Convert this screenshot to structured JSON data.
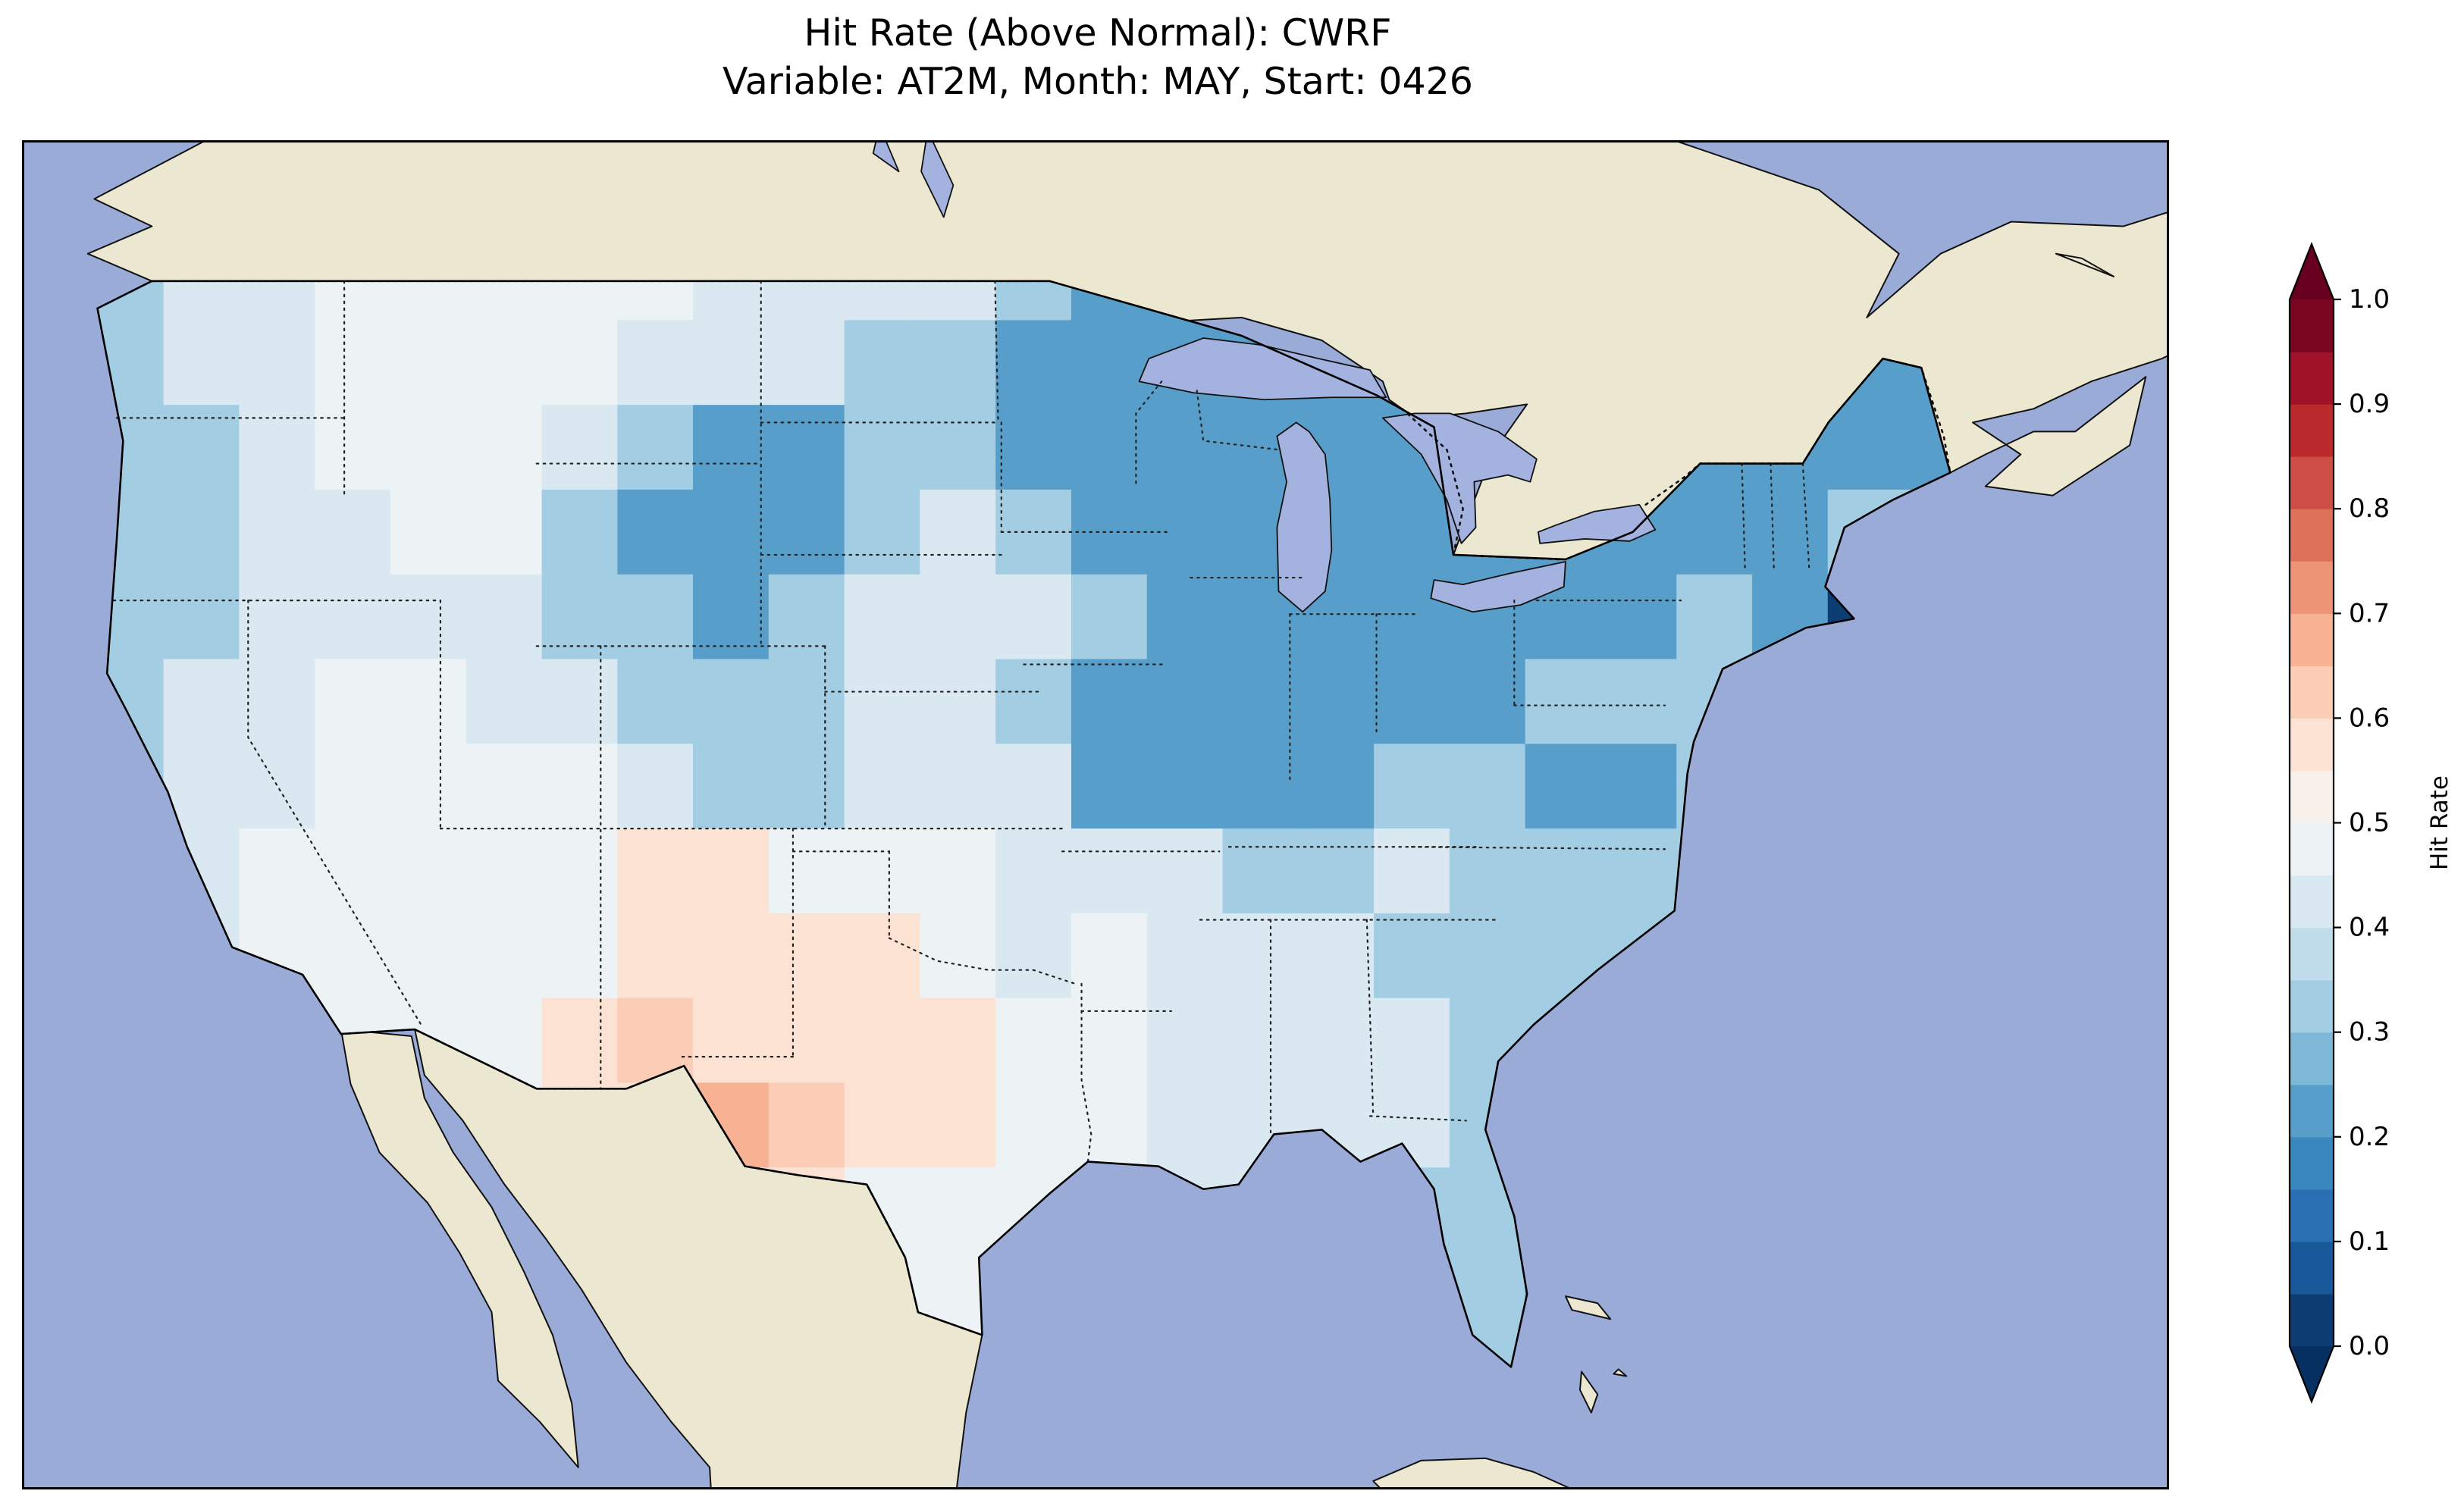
{
  "title": {
    "line1": "Hit Rate (Above Normal): CWRF",
    "line2": "Variable: AT2M, Month: MAY, Start: 0426"
  },
  "colorbar": {
    "label": "Hit Rate",
    "ticks": [
      "1.0",
      "0.9",
      "0.8",
      "0.7",
      "0.6",
      "0.5",
      "0.4",
      "0.3",
      "0.2",
      "0.1",
      "0.0"
    ],
    "under_color": "#053061",
    "over_color": "#67001f",
    "segment_colors": [
      "#0c3e74",
      "#1a5999",
      "#2971b2",
      "#3a88bd",
      "#579fca",
      "#7eb8d7",
      "#a2cde2",
      "#c1ddeb",
      "#dae9f1",
      "#edf2f5",
      "#f8f0eb",
      "#fbe2d3",
      "#fbcdb6",
      "#f6b293",
      "#ec9475",
      "#dd715a",
      "#cd4e44",
      "#bb2a2c",
      "#9f1228",
      "#7a0622"
    ]
  },
  "colors": {
    "ocean": "#9aabd8",
    "land": "#ece7d0",
    "lake": "#a3b2de",
    "coastline": "#111111",
    "background": "#ffffff"
  },
  "chart_data": {
    "type": "heatmap",
    "title": "Hit Rate (Above Normal): CWRF",
    "subtitle": "Variable: AT2M, Month: MAY, Start: 0426",
    "model": "CWRF",
    "variable": "AT2M",
    "month": "MAY",
    "start": "0426",
    "colorbar_label": "Hit Rate",
    "value_range": [
      0.0,
      1.0
    ],
    "colormap": "RdBu_r discrete, 0.05 steps, extended both ends",
    "map_extent": {
      "lon_min": -125,
      "lon_max": -66,
      "lat_min": 22.5,
      "lat_max": 52
    },
    "grid": {
      "lon_start": -125,
      "lon_step": 2.36,
      "lat_start": 50,
      "lat_step": -1.857,
      "cols": 25,
      "rows": 14,
      "values": [
        [
          0.32,
          0.42,
          0.42,
          0.47,
          0.47,
          0.47,
          0.47,
          0.47,
          0.42,
          0.42,
          0.42,
          0.42,
          0.32,
          0.22,
          0.22,
          0.22,
          0.22,
          0.22,
          0.22,
          0.22,
          0.12,
          0.22,
          0.22,
          0.22,
          0.22
        ],
        [
          0.32,
          0.42,
          0.42,
          0.47,
          0.47,
          0.47,
          0.47,
          0.42,
          0.42,
          0.42,
          0.32,
          0.32,
          0.22,
          0.22,
          0.22,
          0.22,
          0.22,
          0.22,
          0.22,
          0.22,
          0.12,
          0.22,
          0.22,
          0.22,
          0.22
        ],
        [
          0.32,
          0.32,
          0.42,
          0.47,
          0.47,
          0.47,
          0.42,
          0.32,
          0.22,
          0.22,
          0.32,
          0.32,
          0.22,
          0.22,
          0.22,
          0.22,
          0.22,
          0.22,
          0.22,
          0.22,
          0.12,
          0.22,
          0.22,
          0.22,
          0.22
        ],
        [
          0.32,
          0.32,
          0.42,
          0.42,
          0.47,
          0.47,
          0.32,
          0.22,
          0.22,
          0.22,
          0.32,
          0.42,
          0.32,
          0.22,
          0.22,
          0.22,
          0.22,
          0.22,
          0.22,
          0.22,
          0.22,
          0.22,
          0.22,
          0.32,
          0.32
        ],
        [
          0.32,
          0.32,
          0.42,
          0.42,
          0.42,
          0.42,
          0.32,
          0.32,
          0.22,
          0.32,
          0.42,
          0.42,
          0.42,
          0.32,
          0.22,
          0.22,
          0.22,
          0.22,
          0.22,
          0.22,
          0.22,
          0.32,
          0.22,
          0.04,
          0.22
        ],
        [
          0.32,
          0.42,
          0.42,
          0.47,
          0.47,
          0.42,
          0.42,
          0.32,
          0.32,
          0.32,
          0.42,
          0.42,
          0.32,
          0.22,
          0.22,
          0.22,
          0.22,
          0.22,
          0.22,
          0.32,
          0.32,
          0.32,
          0.32,
          0.42,
          0.42
        ],
        [
          0.32,
          0.42,
          0.42,
          0.47,
          0.47,
          0.47,
          0.47,
          0.42,
          0.32,
          0.32,
          0.42,
          0.42,
          0.42,
          0.22,
          0.22,
          0.22,
          0.22,
          0.32,
          0.32,
          0.22,
          0.22,
          0.32,
          0.42,
          0.42,
          0.42
        ],
        [
          0.42,
          0.42,
          0.47,
          0.47,
          0.47,
          0.47,
          0.47,
          0.57,
          0.57,
          0.47,
          0.47,
          0.47,
          0.42,
          0.42,
          0.42,
          0.32,
          0.32,
          0.42,
          0.32,
          0.32,
          0.32,
          0.32,
          0.42,
          0.42,
          0.42
        ],
        [
          0.42,
          0.42,
          0.47,
          0.47,
          0.47,
          0.47,
          0.47,
          0.57,
          0.57,
          0.57,
          0.57,
          0.47,
          0.42,
          0.47,
          0.42,
          0.42,
          0.42,
          0.32,
          0.32,
          0.32,
          0.32,
          0.42,
          0.42,
          0.32,
          0.32
        ],
        [
          0.42,
          0.47,
          0.47,
          0.47,
          0.47,
          0.47,
          0.57,
          0.63,
          0.57,
          0.57,
          0.57,
          0.57,
          0.47,
          0.47,
          0.42,
          0.42,
          0.42,
          0.42,
          0.32,
          0.32,
          0.32,
          0.42,
          0.32,
          0.32,
          0.32
        ],
        [
          0.42,
          0.42,
          0.47,
          0.47,
          0.47,
          0.47,
          0.57,
          0.57,
          0.67,
          0.63,
          0.57,
          0.57,
          0.47,
          0.47,
          0.42,
          0.42,
          0.42,
          0.42,
          0.32,
          0.32,
          0.32,
          0.32,
          0.32,
          0.32,
          0.32
        ],
        [
          0.42,
          0.42,
          0.47,
          0.57,
          0.57,
          0.57,
          0.57,
          0.57,
          0.57,
          0.57,
          0.47,
          0.47,
          0.47,
          0.47,
          0.42,
          0.42,
          0.42,
          0.32,
          0.32,
          0.32,
          0.32,
          0.32,
          0.32,
          0.32,
          0.32
        ],
        [
          0.42,
          0.42,
          0.42,
          0.47,
          0.57,
          0.57,
          0.57,
          0.57,
          0.57,
          0.47,
          0.47,
          0.47,
          0.42,
          0.42,
          0.42,
          0.32,
          0.32,
          0.32,
          0.32,
          0.22,
          0.22,
          0.32,
          0.32,
          0.32,
          0.32
        ],
        [
          0.42,
          0.42,
          0.42,
          0.47,
          0.47,
          0.57,
          0.57,
          0.57,
          0.47,
          0.47,
          0.42,
          0.42,
          0.42,
          0.32,
          0.32,
          0.32,
          0.32,
          0.32,
          0.32,
          0.22,
          0.22,
          0.32,
          0.32,
          0.32,
          0.32
        ]
      ]
    }
  }
}
